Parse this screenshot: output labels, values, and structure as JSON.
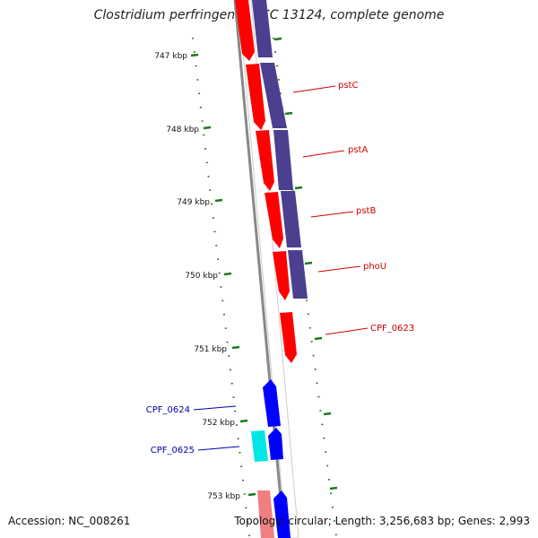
{
  "header": {
    "title": "Clostridium perfringens ATCC 13124, complete genome"
  },
  "footer": {
    "accession": "Accession: NC_008261",
    "summary": "Topology: circular; Length: 3,256,683 bp; Genes: 2,993"
  },
  "ticks": [
    "747 kbp",
    "748 kbp",
    "749 kbp",
    "750 kbp",
    "751 kbp",
    "752 kbp",
    "753 kbp"
  ],
  "gene_labels": [
    "pstC",
    "pstA",
    "pstB",
    "phoU",
    "CPF_0623",
    "CPF_0624",
    "CPF_0625"
  ],
  "colors": {
    "forward_gene": "#ff0000",
    "forward_cds": "#4b3f8f",
    "reverse_gene": "#0000ff",
    "reverse_other": "#00e5e5",
    "faded_gene": "#f08080",
    "label_forward": "#cc0000",
    "label_reverse": "#0000aa",
    "tick": "#1a7a1a",
    "backbone": "#888888"
  }
}
